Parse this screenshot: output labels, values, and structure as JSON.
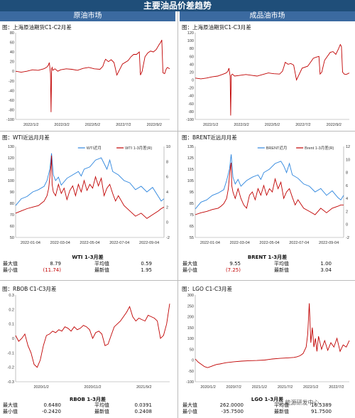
{
  "header": {
    "title": "主要油品价差趋势",
    "left": "原油市场",
    "right": "成品油市场"
  },
  "panels": {
    "p1": {
      "title": "图：上海原油期货C1-C2月差"
    },
    "p2": {
      "title": "图：上海原油期货C1-C3月差"
    },
    "p3": {
      "title": "图：WTI近远月月差"
    },
    "p4": {
      "title": "图：BRENT近远月月差"
    },
    "p5": {
      "title": "图：RBOB C1-C3月差"
    },
    "p6": {
      "title": "图：LGO C1-C3月差"
    }
  },
  "stats": {
    "wti": {
      "title": "WTI 1-3月差",
      "max_label": "最大值",
      "max": "8.79",
      "avg_label": "平均值",
      "avg": "0.59",
      "min_label": "最小值",
      "min": "(11.74)",
      "latest_label": "最新值",
      "latest": "1.95"
    },
    "brent": {
      "title": "BRENT 1-3月差",
      "max_label": "最大值",
      "max": "9.55",
      "avg_label": "平均值",
      "avg": "1.00",
      "min_label": "最小值",
      "min": "(7.25)",
      "latest_label": "最新值",
      "latest": "3.04"
    },
    "rbob": {
      "title": "RBOB 1-3月差",
      "max_label": "最大值",
      "max": "0.6480",
      "avg_label": "平均值",
      "avg": "0.0391",
      "min_label": "最小值",
      "min": "-0.2420",
      "latest_label": "最新值",
      "latest": "0.2408"
    },
    "lgo": {
      "title": "LGO 1-3月差",
      "max_label": "最大值",
      "max": "262.0000",
      "avg_label": "平均值",
      "avg": "16.5389",
      "min_label": "最小值",
      "min": "-35.7500",
      "latest_label": "最新值",
      "latest": "91.7500"
    }
  },
  "watermark": "能源研发中心",
  "chart_data": [
    {
      "id": "p1",
      "type": "line",
      "ylim": [
        -100,
        80
      ],
      "yticks": [
        -100,
        -80,
        -60,
        -40,
        -20,
        0,
        20,
        40,
        60,
        80
      ],
      "xticks": [
        "2022/1/2",
        "2022/3/2",
        "2022/5/2",
        "2022/7/2",
        "2022/9/2"
      ],
      "xrange": [
        0,
        274
      ],
      "series": [
        {
          "color": "#c00000",
          "axis": "left",
          "x": [
            0,
            10,
            20,
            30,
            40,
            50,
            55,
            58,
            60,
            62,
            63,
            64,
            65,
            66,
            70,
            75,
            80,
            90,
            100,
            110,
            120,
            130,
            140,
            150,
            155,
            158,
            160,
            165,
            170,
            175,
            180,
            190,
            200,
            205,
            210,
            215,
            220,
            222,
            225,
            230,
            235,
            240,
            245,
            250,
            255,
            258,
            260,
            262,
            265,
            268,
            270,
            274
          ],
          "values": [
            0,
            -2,
            0,
            3,
            2,
            5,
            8,
            12,
            18,
            -5,
            -85,
            5,
            8,
            2,
            5,
            0,
            3,
            5,
            4,
            2,
            6,
            8,
            5,
            4,
            10,
            20,
            25,
            20,
            24,
            18,
            -8,
            15,
            22,
            30,
            35,
            35,
            40,
            -8,
            0,
            30,
            38,
            42,
            40,
            45,
            55,
            60,
            65,
            -3,
            -5,
            5,
            8,
            5
          ]
        }
      ]
    },
    {
      "id": "p2",
      "type": "line",
      "ylim": [
        -100,
        120
      ],
      "yticks": [
        -100,
        -80,
        -60,
        -40,
        -20,
        0,
        20,
        40,
        60,
        80,
        100,
        120
      ],
      "xticks": [
        "2022/1/2",
        "2022/3/2",
        "2022/5/2",
        "2022/7/2",
        "2022/9/2"
      ],
      "xrange": [
        0,
        274
      ],
      "series": [
        {
          "color": "#c00000",
          "axis": "left",
          "x": [
            0,
            10,
            20,
            30,
            40,
            50,
            55,
            58,
            60,
            62,
            63,
            64,
            66,
            70,
            80,
            90,
            100,
            110,
            120,
            130,
            140,
            150,
            155,
            158,
            160,
            165,
            170,
            175,
            180,
            190,
            200,
            205,
            210,
            215,
            220,
            222,
            225,
            230,
            235,
            240,
            245,
            250,
            255,
            258,
            260,
            262,
            265,
            268,
            270,
            274
          ],
          "values": [
            5,
            3,
            5,
            8,
            10,
            15,
            18,
            22,
            30,
            10,
            -90,
            12,
            15,
            10,
            12,
            14,
            12,
            10,
            14,
            18,
            16,
            15,
            22,
            35,
            45,
            40,
            42,
            38,
            0,
            30,
            35,
            45,
            55,
            58,
            60,
            15,
            20,
            50,
            60,
            70,
            72,
            65,
            80,
            90,
            85,
            20,
            15,
            14,
            15,
            18
          ]
        }
      ]
    },
    {
      "id": "p3",
      "type": "line",
      "ylim": [
        50,
        130
      ],
      "yticks": [
        50,
        60,
        70,
        80,
        90,
        100,
        110,
        120,
        130
      ],
      "y2lim": [
        -2,
        10
      ],
      "y2ticks": [
        -2,
        0,
        2,
        4,
        6,
        8,
        10
      ],
      "xticks": [
        "2022-01-04",
        "2022-03-04",
        "2022-05-04",
        "2022-07-04",
        "2022-09-04"
      ],
      "xrange": [
        0,
        260
      ],
      "series": [
        {
          "name": "WTI近月",
          "color": "#2e86de",
          "axis": "left",
          "x": [
            0,
            10,
            20,
            30,
            40,
            50,
            55,
            60,
            63,
            66,
            70,
            75,
            80,
            90,
            100,
            110,
            115,
            120,
            130,
            140,
            150,
            155,
            160,
            165,
            170,
            180,
            190,
            200,
            210,
            220,
            230,
            240,
            250,
            255,
            260
          ],
          "values": [
            78,
            84,
            86,
            90,
            92,
            95,
            100,
            110,
            124,
            105,
            100,
            103,
            96,
            102,
            105,
            108,
            104,
            110,
            112,
            118,
            120,
            115,
            110,
            118,
            108,
            105,
            100,
            98,
            92,
            95,
            90,
            94,
            86,
            82,
            84
          ]
        },
        {
          "name": "WTI 1-3月差(R)",
          "color": "#c00000",
          "axis": "right",
          "x": [
            0,
            10,
            20,
            30,
            40,
            45,
            50,
            55,
            58,
            60,
            62,
            63,
            64,
            66,
            70,
            75,
            80,
            85,
            90,
            95,
            100,
            105,
            110,
            115,
            120,
            125,
            130,
            135,
            140,
            145,
            150,
            155,
            160,
            165,
            170,
            175,
            180,
            190,
            200,
            210,
            220,
            230,
            240,
            250,
            255,
            260
          ],
          "values": [
            1.2,
            1.5,
            1.8,
            2.0,
            2.2,
            2.5,
            2.8,
            3.5,
            4.5,
            6.0,
            7.5,
            8.8,
            5.0,
            4.0,
            3.5,
            5.0,
            3.8,
            4.5,
            3.0,
            4.2,
            4.8,
            3.5,
            5.0,
            4.0,
            5.5,
            4.2,
            5.0,
            4.5,
            6.0,
            4.8,
            5.8,
            3.5,
            4.5,
            5.0,
            3.8,
            2.8,
            3.5,
            2.2,
            1.5,
            0.8,
            1.2,
            0.5,
            1.0,
            1.5,
            1.8,
            2.0
          ]
        }
      ]
    },
    {
      "id": "p4",
      "type": "line",
      "ylim": [
        55,
        135
      ],
      "yticks": [
        55,
        65,
        75,
        85,
        95,
        105,
        115,
        125,
        135
      ],
      "y2lim": [
        -2,
        12
      ],
      "y2ticks": [
        -2,
        0,
        2,
        4,
        6,
        8,
        10,
        12
      ],
      "xticks": [
        "2022-01-04",
        "2022-03-04",
        "2022-05-04",
        "2022-07-04",
        "2022-09-04"
      ],
      "xrange": [
        0,
        260
      ],
      "series": [
        {
          "name": "BRENT近月",
          "color": "#2e86de",
          "axis": "left",
          "x": [
            0,
            10,
            20,
            30,
            40,
            50,
            55,
            60,
            63,
            66,
            70,
            75,
            80,
            90,
            100,
            110,
            115,
            120,
            130,
            140,
            150,
            155,
            160,
            165,
            170,
            180,
            190,
            200,
            210,
            220,
            230,
            240,
            250,
            255,
            260
          ],
          "values": [
            80,
            86,
            88,
            92,
            94,
            97,
            105,
            115,
            128,
            108,
            102,
            106,
            100,
            105,
            108,
            110,
            106,
            112,
            115,
            120,
            122,
            118,
            112,
            120,
            110,
            107,
            102,
            100,
            95,
            98,
            92,
            96,
            90,
            88,
            92
          ]
        },
        {
          "name": "Brent 1-3月差(R)",
          "color": "#c00000",
          "axis": "right",
          "x": [
            0,
            10,
            20,
            30,
            40,
            45,
            50,
            55,
            58,
            60,
            62,
            63,
            64,
            66,
            70,
            75,
            80,
            85,
            90,
            95,
            100,
            105,
            110,
            115,
            120,
            125,
            130,
            135,
            140,
            145,
            150,
            155,
            160,
            165,
            170,
            175,
            180,
            190,
            200,
            210,
            220,
            230,
            240,
            250,
            255,
            260
          ],
          "values": [
            1.5,
            1.8,
            2.0,
            2.3,
            2.5,
            2.8,
            3.2,
            4.0,
            5.5,
            7.5,
            9.0,
            9.5,
            6.0,
            5.0,
            4.0,
            5.5,
            4.0,
            3.0,
            2.5,
            4.5,
            5.0,
            3.8,
            5.5,
            4.5,
            6.0,
            4.5,
            5.5,
            5.0,
            7.0,
            5.5,
            6.5,
            4.0,
            5.0,
            5.5,
            4.2,
            3.0,
            3.8,
            2.5,
            2.0,
            1.5,
            2.5,
            1.8,
            2.5,
            2.8,
            3.0,
            3.0
          ]
        }
      ]
    },
    {
      "id": "p5",
      "type": "line",
      "ylim": [
        -0.3,
        0.3
      ],
      "yticks": [
        -0.3,
        -0.2,
        -0.1,
        0,
        0.1,
        0.2,
        0.3
      ],
      "xticks": [
        "2020/1/2",
        "2020/11/2",
        "2021/9/2"
      ],
      "xrange": [
        0,
        1000
      ],
      "series": [
        {
          "color": "#c00000",
          "axis": "left",
          "x": [
            0,
            20,
            40,
            60,
            80,
            100,
            120,
            140,
            160,
            180,
            200,
            220,
            240,
            260,
            280,
            300,
            320,
            340,
            360,
            380,
            400,
            420,
            440,
            460,
            480,
            500,
            520,
            540,
            560,
            580,
            600,
            620,
            640,
            660,
            680,
            700,
            720,
            740,
            760,
            780,
            800,
            820,
            840,
            860,
            880,
            900,
            920,
            940,
            960,
            980,
            1000
          ],
          "values": [
            0.02,
            -0.02,
            0.0,
            0.03,
            -0.05,
            -0.1,
            -0.18,
            -0.2,
            -0.15,
            -0.05,
            0.02,
            0.03,
            0.05,
            0.04,
            0.06,
            0.05,
            0.08,
            0.07,
            0.05,
            0.08,
            0.06,
            0.07,
            0.09,
            0.08,
            0.06,
            0.0,
            0.04,
            0.05,
            0.03,
            -0.05,
            -0.04,
            0.02,
            0.08,
            0.1,
            0.12,
            0.15,
            0.18,
            0.22,
            0.15,
            0.12,
            0.14,
            0.13,
            0.12,
            0.16,
            0.15,
            0.14,
            0.12,
            0.0,
            0.02,
            0.1,
            0.24
          ]
        }
      ]
    },
    {
      "id": "p6",
      "type": "line",
      "ylim": [
        -100,
        300
      ],
      "yticks": [
        -100,
        -50,
        0,
        50,
        100,
        150,
        200,
        250,
        300
      ],
      "xticks": [
        "2020/1/2",
        "2020/7/2",
        "2021/1/2",
        "2021/7/2",
        "2022/1/2",
        "2022/7/2"
      ],
      "xrange": [
        0,
        1000
      ],
      "series": [
        {
          "color": "#c00000",
          "axis": "left",
          "x": [
            0,
            20,
            40,
            60,
            80,
            100,
            120,
            140,
            160,
            180,
            200,
            250,
            300,
            350,
            400,
            450,
            500,
            550,
            600,
            640,
            660,
            680,
            700,
            720,
            730,
            740,
            750,
            760,
            770,
            780,
            790,
            800,
            820,
            840,
            860,
            880,
            900,
            920,
            940,
            960,
            980,
            1000
          ],
          "values": [
            5,
            -10,
            -20,
            -30,
            -35,
            -30,
            -25,
            -20,
            -18,
            -15,
            -12,
            -8,
            -5,
            -3,
            -2,
            0,
            5,
            8,
            10,
            12,
            15,
            20,
            30,
            60,
            120,
            262,
            80,
            150,
            60,
            100,
            40,
            110,
            50,
            90,
            45,
            80,
            60,
            100,
            40,
            70,
            60,
            90
          ]
        }
      ]
    }
  ]
}
